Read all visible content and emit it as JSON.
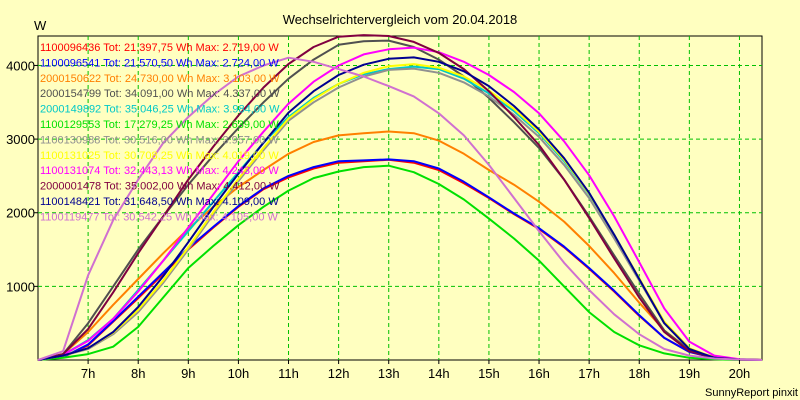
{
  "chart_data": {
    "type": "line",
    "title": "Wechselrichtervergleich vom 20.04.2018",
    "ylabel": "W",
    "xlabel": "",
    "credit": "SunnyReport pinxit",
    "xlim": [
      6.0,
      20.45
    ],
    "ylim": [
      0,
      4400
    ],
    "yticks": [
      1000,
      2000,
      3000,
      4000
    ],
    "xticks": [
      7,
      8,
      9,
      10,
      11,
      12,
      13,
      14,
      15,
      16,
      17,
      18,
      19,
      20
    ],
    "xtick_labels": [
      "7h",
      "8h",
      "9h",
      "10h",
      "11h",
      "12h",
      "13h",
      "14h",
      "15h",
      "16h",
      "17h",
      "18h",
      "19h",
      "20h"
    ],
    "grid": true,
    "legend_position": "top-left",
    "series": [
      {
        "name": "1100096436",
        "label": "1100096436 Tot: 21.397,75 Wh Max: 2.719,00 W",
        "color": "#ff0000",
        "x": [
          6.0,
          6.5,
          7.0,
          7.5,
          8.0,
          8.5,
          9.0,
          9.5,
          10.0,
          10.5,
          11.0,
          11.5,
          12.0,
          12.5,
          13.0,
          13.5,
          14.0,
          14.5,
          15.0,
          15.5,
          16.0,
          16.5,
          17.0,
          17.5,
          18.0,
          18.5,
          19.0,
          19.5,
          20.0,
          20.45
        ],
        "y": [
          0,
          40,
          200,
          520,
          840,
          1170,
          1500,
          1800,
          2080,
          2320,
          2480,
          2600,
          2680,
          2700,
          2719,
          2680,
          2580,
          2400,
          2200,
          1980,
          1780,
          1530,
          1240,
          930,
          600,
          300,
          110,
          30,
          5,
          0
        ]
      },
      {
        "name": "1100096541",
        "label": "1100096541 Tot: 21.570,50 Wh Max: 2.724,00 W",
        "color": "#0000ff",
        "x": [
          6.0,
          6.5,
          7.0,
          7.5,
          8.0,
          8.5,
          9.0,
          9.5,
          10.0,
          10.5,
          11.0,
          11.5,
          12.0,
          12.5,
          13.0,
          13.5,
          14.0,
          14.5,
          15.0,
          15.5,
          16.0,
          16.5,
          17.0,
          17.5,
          18.0,
          18.5,
          19.0,
          19.5,
          20.0,
          20.45
        ],
        "y": [
          0,
          40,
          210,
          530,
          860,
          1190,
          1520,
          1810,
          2090,
          2330,
          2500,
          2620,
          2700,
          2710,
          2724,
          2700,
          2600,
          2420,
          2210,
          1990,
          1790,
          1540,
          1250,
          940,
          610,
          300,
          110,
          30,
          5,
          0
        ]
      },
      {
        "name": "2000150622",
        "label": "2000150622 Tot: 24.730,00 Wh Max: 3.103,00 W",
        "color": "#ff8000",
        "x": [
          6.0,
          6.5,
          7.0,
          7.5,
          8.0,
          8.5,
          9.0,
          9.5,
          10.0,
          10.5,
          11.0,
          11.5,
          12.0,
          12.5,
          13.0,
          13.5,
          14.0,
          14.5,
          15.0,
          15.5,
          16.0,
          16.5,
          17.0,
          17.5,
          18.0,
          18.5,
          19.0,
          19.5,
          20.0,
          20.45
        ],
        "y": [
          0,
          80,
          380,
          750,
          1100,
          1450,
          1780,
          2080,
          2350,
          2580,
          2800,
          2960,
          3050,
          3080,
          3103,
          3080,
          2980,
          2800,
          2580,
          2380,
          2150,
          1880,
          1550,
          1180,
          780,
          400,
          140,
          40,
          5,
          0
        ]
      },
      {
        "name": "2000154799",
        "label": "2000154799 Tot: 34.091,00 Wh Max: 4.337,00 W",
        "color": "#505050",
        "x": [
          6.0,
          6.5,
          7.0,
          7.5,
          8.0,
          8.5,
          9.0,
          9.5,
          10.0,
          10.5,
          11.0,
          11.5,
          12.0,
          12.5,
          13.0,
          13.5,
          14.0,
          14.5,
          15.0,
          15.5,
          16.0,
          16.5,
          17.0,
          17.5,
          18.0,
          18.5,
          19.0,
          19.5,
          20.0,
          20.45
        ],
        "y": [
          0,
          80,
          500,
          1000,
          1500,
          1950,
          2380,
          2780,
          3150,
          3500,
          3820,
          4080,
          4280,
          4330,
          4337,
          4250,
          4080,
          3850,
          3560,
          3230,
          2880,
          2450,
          1950,
          1420,
          900,
          400,
          130,
          30,
          5,
          0
        ]
      },
      {
        "name": "2000149892",
        "label": "2000149892 Tot: 35.046,25 Wh Max: 3.984,00 W",
        "color": "#00c8c8",
        "x": [
          6.0,
          6.5,
          7.0,
          7.5,
          8.0,
          8.5,
          9.0,
          9.5,
          10.0,
          10.5,
          11.0,
          11.5,
          12.0,
          12.5,
          13.0,
          13.5,
          14.0,
          14.5,
          15.0,
          15.5,
          16.0,
          16.5,
          17.0,
          17.5,
          18.0,
          18.5,
          19.0,
          19.5,
          20.0,
          20.45
        ],
        "y": [
          0,
          70,
          270,
          560,
          950,
          1350,
          1750,
          2150,
          2550,
          2950,
          3300,
          3560,
          3750,
          3880,
          3950,
          3984,
          3950,
          3820,
          3620,
          3380,
          3080,
          2700,
          2250,
          1700,
          1100,
          500,
          150,
          30,
          5,
          0
        ]
      },
      {
        "name": "1100129553",
        "label": "1100129553 Tot: 17.279,25 Wh Max: 2.639,00 W",
        "color": "#00e000",
        "x": [
          6.0,
          6.5,
          7.0,
          7.5,
          8.0,
          8.5,
          9.0,
          9.5,
          10.0,
          10.5,
          11.0,
          11.5,
          12.0,
          12.5,
          13.0,
          13.5,
          14.0,
          14.5,
          15.0,
          15.5,
          16.0,
          16.5,
          17.0,
          17.5,
          18.0,
          18.5,
          19.0,
          19.5,
          20.0,
          20.45
        ],
        "y": [
          0,
          30,
          80,
          180,
          450,
          850,
          1250,
          1550,
          1830,
          2080,
          2300,
          2470,
          2560,
          2620,
          2639,
          2550,
          2390,
          2180,
          1920,
          1650,
          1350,
          1000,
          650,
          380,
          200,
          90,
          30,
          10,
          0,
          0
        ]
      },
      {
        "name": "1100130988",
        "label": "1100130988 Tot: 30.516,00 Wh Max: 3.957,00 W",
        "color": "#909090",
        "x": [
          6.0,
          6.5,
          7.0,
          7.5,
          8.0,
          8.5,
          9.0,
          9.5,
          10.0,
          10.5,
          11.0,
          11.5,
          12.0,
          12.5,
          13.0,
          13.5,
          14.0,
          14.5,
          15.0,
          15.5,
          16.0,
          16.5,
          17.0,
          17.5,
          18.0,
          18.5,
          19.0,
          19.5,
          20.0,
          20.45
        ],
        "y": [
          0,
          60,
          150,
          350,
          650,
          1050,
          1500,
          1980,
          2430,
          2850,
          3250,
          3500,
          3700,
          3850,
          3940,
          3957,
          3900,
          3770,
          3580,
          3330,
          3030,
          2650,
          2200,
          1650,
          1080,
          500,
          150,
          30,
          5,
          0
        ]
      },
      {
        "name": "1100131025",
        "label": "1100131025 Tot: 30.708,25 Wh Max: 4.019,00 W",
        "color": "#ffff00",
        "x": [
          6.0,
          6.5,
          7.0,
          7.5,
          8.0,
          8.5,
          9.0,
          9.5,
          10.0,
          10.5,
          11.0,
          11.5,
          12.0,
          12.5,
          13.0,
          13.5,
          14.0,
          14.5,
          15.0,
          15.5,
          16.0,
          16.5,
          17.0,
          17.5,
          18.0,
          18.5,
          19.0,
          19.5,
          20.0,
          20.45
        ],
        "y": [
          0,
          60,
          160,
          370,
          680,
          1080,
          1530,
          2010,
          2460,
          2880,
          3280,
          3540,
          3750,
          3900,
          3990,
          4019,
          3970,
          3850,
          3660,
          3410,
          3100,
          2720,
          2260,
          1700,
          1110,
          520,
          160,
          30,
          5,
          0
        ]
      },
      {
        "name": "1100131074",
        "label": "1100131074 Tot: 32.443,13 Wh Max: 4.243,00 W",
        "color": "#ff00ff",
        "x": [
          6.0,
          6.5,
          7.0,
          7.5,
          8.0,
          8.5,
          9.0,
          9.5,
          10.0,
          10.5,
          11.0,
          11.5,
          12.0,
          12.5,
          13.0,
          13.5,
          14.0,
          14.5,
          15.0,
          15.5,
          16.0,
          16.5,
          17.0,
          17.5,
          18.0,
          18.5,
          19.0,
          19.5,
          20.0,
          20.45
        ],
        "y": [
          0,
          70,
          260,
          560,
          930,
          1350,
          1800,
          2250,
          2700,
          3100,
          3480,
          3780,
          4000,
          4150,
          4220,
          4243,
          4180,
          4050,
          3870,
          3640,
          3350,
          2970,
          2510,
          1950,
          1330,
          700,
          250,
          60,
          10,
          0
        ]
      },
      {
        "name": "2000001478",
        "label": "2000001478 Tot: 35.002,00 Wh Max: 4.412,00 W",
        "color": "#800040",
        "x": [
          6.0,
          6.5,
          7.0,
          7.5,
          8.0,
          8.5,
          9.0,
          9.5,
          10.0,
          10.5,
          11.0,
          11.5,
          12.0,
          12.5,
          13.0,
          13.5,
          14.0,
          14.5,
          15.0,
          15.5,
          16.0,
          16.5,
          17.0,
          17.5,
          18.0,
          18.5,
          19.0,
          19.5,
          20.0,
          20.45
        ],
        "y": [
          0,
          80,
          420,
          920,
          1450,
          1950,
          2450,
          2900,
          3320,
          3700,
          4020,
          4250,
          4390,
          4412,
          4400,
          4320,
          4170,
          3950,
          3650,
          3300,
          2920,
          2450,
          1930,
          1380,
          850,
          380,
          120,
          30,
          5,
          0
        ]
      },
      {
        "name": "1100148421",
        "label": "1100148421 Tot: 31.648,50 Wh Max: 4.109,00 W",
        "color": "#000090",
        "x": [
          6.0,
          6.5,
          7.0,
          7.5,
          8.0,
          8.5,
          9.0,
          9.5,
          10.0,
          10.5,
          11.0,
          11.5,
          12.0,
          12.5,
          13.0,
          13.5,
          14.0,
          14.5,
          15.0,
          15.5,
          16.0,
          16.5,
          17.0,
          17.5,
          18.0,
          18.5,
          19.0,
          19.5,
          20.0,
          20.45
        ],
        "y": [
          0,
          60,
          160,
          380,
          720,
          1140,
          1600,
          2080,
          2530,
          2950,
          3360,
          3650,
          3870,
          4010,
          4090,
          4109,
          4050,
          3920,
          3720,
          3450,
          3130,
          2740,
          2270,
          1700,
          1100,
          500,
          150,
          30,
          5,
          0
        ]
      },
      {
        "name": "1100119477",
        "label": "1100119477 Tot: 30.542,25 Wh Max: 4.105,00 W",
        "color": "#d070d0",
        "x": [
          6.0,
          6.5,
          7.0,
          7.5,
          8.0,
          8.5,
          9.0,
          9.5,
          10.0,
          10.5,
          11.0,
          11.5,
          12.0,
          12.5,
          13.0,
          13.5,
          14.0,
          14.5,
          15.0,
          15.5,
          16.0,
          16.5,
          17.0,
          17.5,
          18.0,
          18.5,
          19.0,
          19.5,
          20.0,
          20.45
        ],
        "y": [
          0,
          120,
          1150,
          1900,
          2450,
          2950,
          3300,
          3600,
          3850,
          4000,
          4105,
          4050,
          3950,
          3850,
          3720,
          3580,
          3350,
          3050,
          2650,
          2200,
          1750,
          1320,
          950,
          620,
          350,
          150,
          60,
          20,
          5,
          0
        ]
      }
    ]
  }
}
